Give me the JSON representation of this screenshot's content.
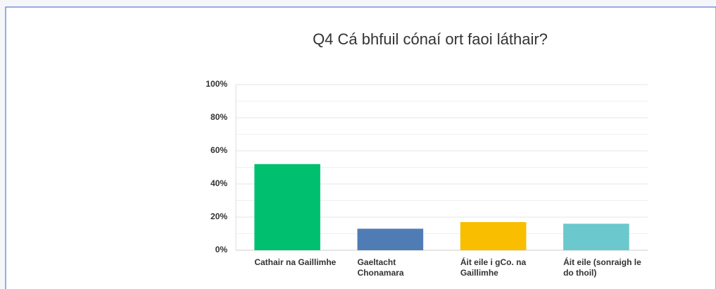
{
  "chart_data": {
    "type": "bar",
    "title": "Q4 Cá bhfuil cónaí ort faoi láthair?",
    "categories": [
      "Cathair na Gaillimhe",
      "Gaeltacht Chonamara",
      "Áit eile i gCo. na Gaillimhe",
      "Áit eile (sonraigh le do thoil)"
    ],
    "values": [
      52,
      13,
      17,
      16
    ],
    "colors": [
      "#00bf6f",
      "#507cb6",
      "#f9be00",
      "#6bc8cd"
    ],
    "ylim": [
      0,
      100
    ],
    "yticks": [
      {
        "value": 0,
        "label": "0%"
      },
      {
        "value": 20,
        "label": "20%"
      },
      {
        "value": 40,
        "label": "40%"
      },
      {
        "value": 60,
        "label": "60%"
      },
      {
        "value": 80,
        "label": "80%"
      },
      {
        "value": 100,
        "label": "100%"
      }
    ],
    "minor_yticks": [
      10,
      30,
      50,
      70,
      90
    ],
    "grid": true
  }
}
